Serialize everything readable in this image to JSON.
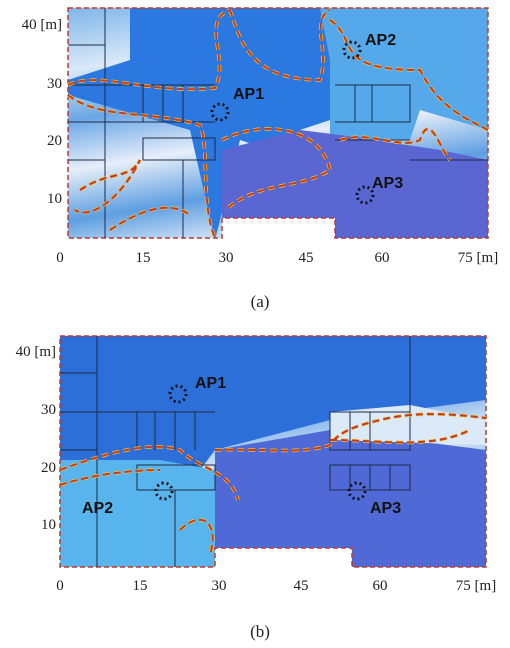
{
  "panels": [
    {
      "caption": "(a)",
      "x_ticks": [
        "0",
        "15",
        "30",
        "45",
        "60",
        "75 [m]"
      ],
      "y_ticks": [
        "40 [m]",
        "30",
        "20",
        "10"
      ],
      "access_points": [
        "AP1",
        "AP2",
        "AP3"
      ]
    },
    {
      "caption": "(b)",
      "x_ticks": [
        "0",
        "15",
        "30",
        "45",
        "60",
        "75 [m]"
      ],
      "y_ticks": [
        "40 [m]",
        "30",
        "20",
        "10"
      ],
      "access_points": [
        "AP1",
        "AP2",
        "AP3"
      ]
    }
  ]
}
